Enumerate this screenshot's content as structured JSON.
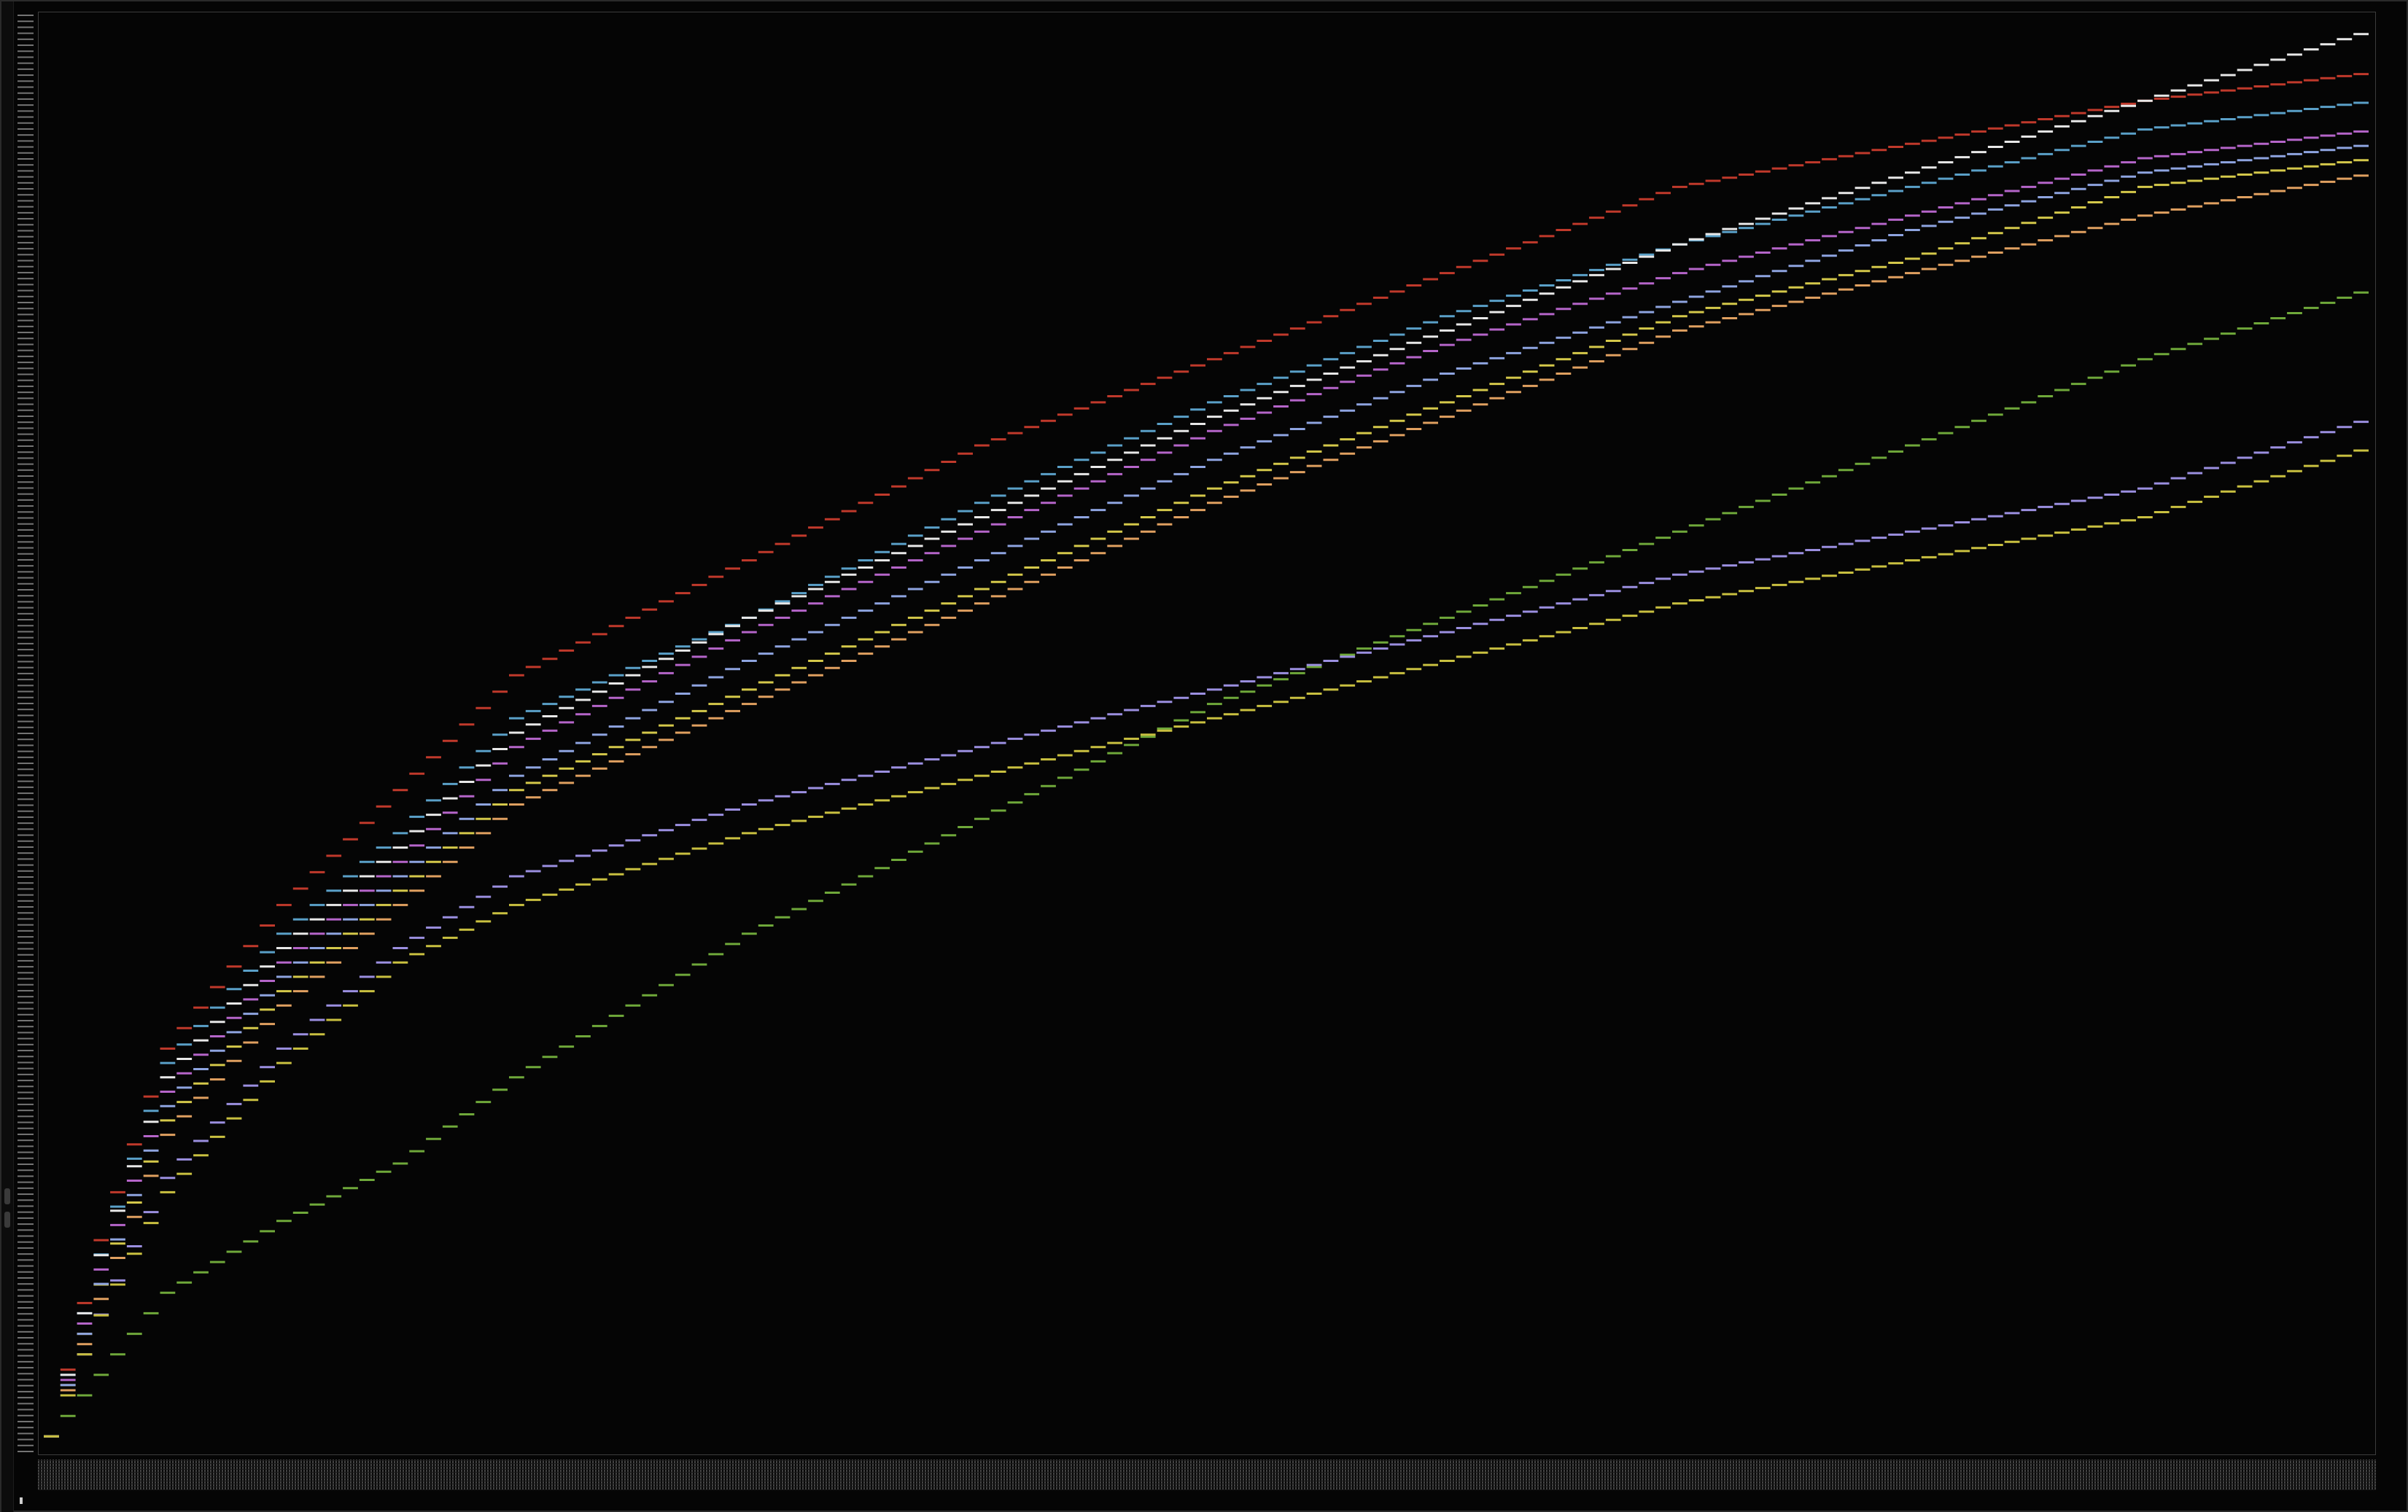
{
  "window": {
    "title": "",
    "status": ""
  },
  "colors": {
    "background": "#000000",
    "frame": "#3c3c3c",
    "axis_text": "#bdbdbd"
  },
  "chart_data": {
    "type": "line",
    "title": "",
    "xlabel": "",
    "ylabel": "",
    "xlim": [
      0,
      100
    ],
    "ylim": [
      0,
      100
    ],
    "grid": false,
    "legend": "none",
    "line_style": "step-segments",
    "x": [
      0,
      2,
      5,
      10,
      15,
      20,
      30,
      40,
      50,
      60,
      70,
      80,
      90,
      100
    ],
    "series": [
      {
        "color": "#c0392b",
        "values": [
          1,
          14,
          28,
          38,
          46,
          54,
          62,
          70,
          76,
          82,
          88,
          91,
          94,
          96
        ]
      },
      {
        "color": "#5aa0c8",
        "values": [
          1,
          13,
          27,
          36,
          43,
          51,
          58,
          66,
          73,
          79,
          84,
          88,
          92,
          94
        ]
      },
      {
        "color": "#b565c9",
        "values": [
          1,
          12,
          25,
          34,
          41,
          49,
          57,
          64,
          71,
          77,
          82,
          86,
          90,
          92
        ]
      },
      {
        "color": "#e8e8e8",
        "values": [
          1,
          13,
          26,
          35,
          42,
          50,
          58,
          65,
          72,
          78,
          84,
          89,
          94,
          99
        ]
      },
      {
        "color": "#d4c84a",
        "values": [
          1,
          11,
          23,
          32,
          39,
          46,
          53,
          60,
          67,
          73,
          79,
          83,
          88,
          90
        ]
      },
      {
        "color": "#8ea4e0",
        "values": [
          1,
          11,
          24,
          33,
          40,
          47,
          55,
          62,
          69,
          75,
          80,
          85,
          89,
          91
        ]
      },
      {
        "color": "#e0a060",
        "values": [
          1,
          10,
          22,
          31,
          38,
          45,
          52,
          59,
          66,
          72,
          78,
          82,
          86,
          89
        ]
      },
      {
        "color": "#6fa83a",
        "values": [
          1,
          5,
          11,
          16,
          20,
          26,
          36,
          44,
          52,
          58,
          64,
          70,
          76,
          81
        ]
      },
      {
        "color": "#9b8fe0",
        "values": [
          1,
          9,
          19,
          28,
          35,
          40,
          45,
          49,
          53,
          57,
          61,
          64,
          67,
          72
        ]
      },
      {
        "color": "#c9c040",
        "values": [
          1,
          9,
          18,
          27,
          34,
          38,
          43,
          47,
          51,
          55,
          59,
          62,
          65,
          70
        ]
      }
    ]
  }
}
